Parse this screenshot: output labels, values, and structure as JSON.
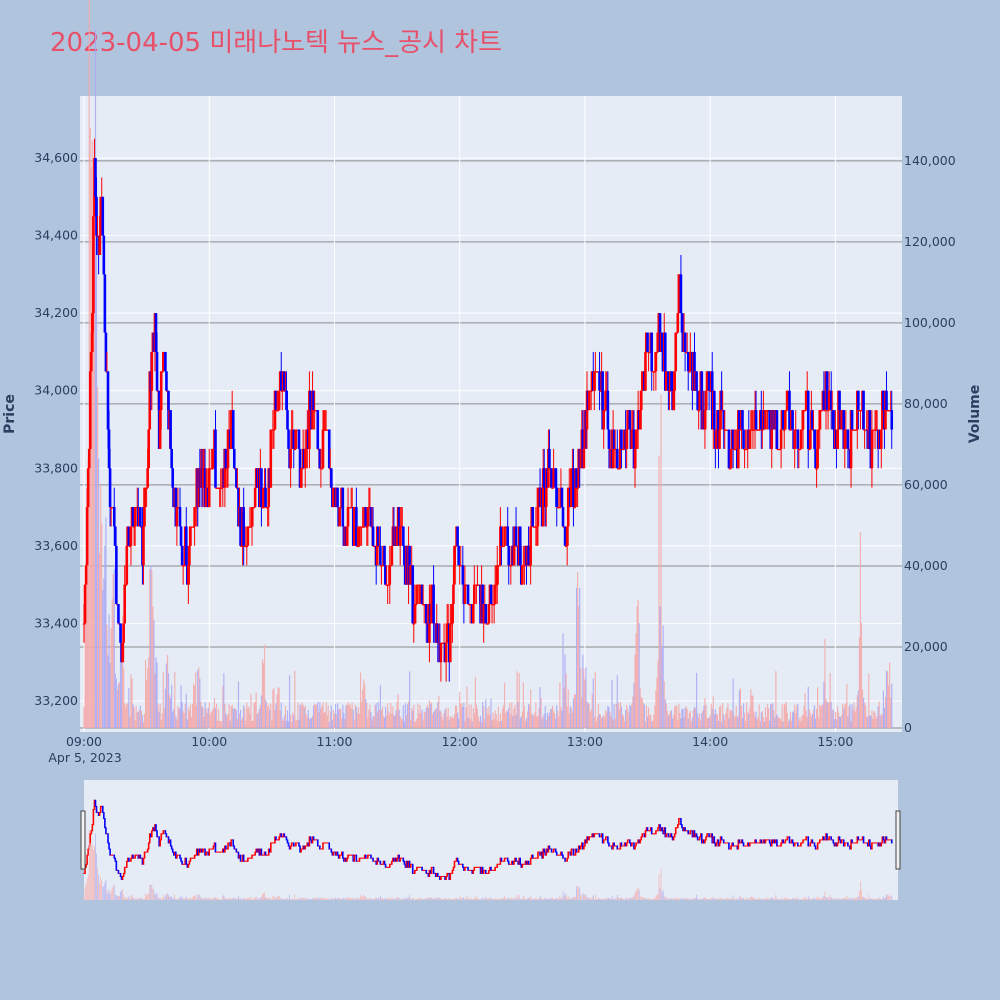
{
  "title": "2023-04-05 미래나노텍 뉴스_공시 차트",
  "colors": {
    "up": "#ff0000",
    "down": "#0000ff",
    "plot_bg": "#e5ecf6",
    "page_bg": "#b0c4de",
    "title": "#e8506a"
  },
  "chart_data": {
    "type": "candlestick",
    "title": "2023-04-05 미래나노텍 뉴스_공시 차트",
    "ylabel": "Price",
    "y2label": "Volume",
    "ylim": [
      33120,
      34760
    ],
    "y2lim": [
      0,
      156000
    ],
    "yticks": [
      "33,200",
      "33,400",
      "33,600",
      "33,800",
      "34,000",
      "34,200",
      "34,400",
      "34,600"
    ],
    "y2ticks": [
      "0",
      "20,000",
      "40,000",
      "60,000",
      "80,000",
      "100,000",
      "120,000",
      "140,000"
    ],
    "xticks": [
      "09:00",
      "10:00",
      "11:00",
      "12:00",
      "13:00",
      "14:00",
      "15:00"
    ],
    "xdate_label": "Apr 5, 2023",
    "xrange": [
      "09:00",
      "15:30"
    ],
    "grid": true,
    "legend": "none",
    "price_path": [
      [
        "09:00",
        33400
      ],
      [
        "09:02",
        33800
      ],
      [
        "09:04",
        34200
      ],
      [
        "09:05",
        34600
      ],
      [
        "09:07",
        34300
      ],
      [
        "09:08",
        34500
      ],
      [
        "09:10",
        34200
      ],
      [
        "09:12",
        33800
      ],
      [
        "09:14",
        33650
      ],
      [
        "09:16",
        33450
      ],
      [
        "09:18",
        33300
      ],
      [
        "09:20",
        33550
      ],
      [
        "09:23",
        33650
      ],
      [
        "09:26",
        33700
      ],
      [
        "09:28",
        33600
      ],
      [
        "09:30",
        33750
      ],
      [
        "09:32",
        34050
      ],
      [
        "09:34",
        34200
      ],
      [
        "09:36",
        33850
      ],
      [
        "09:38",
        34100
      ],
      [
        "09:40",
        34000
      ],
      [
        "09:42",
        33800
      ],
      [
        "09:44",
        33700
      ],
      [
        "09:47",
        33600
      ],
      [
        "09:50",
        33550
      ],
      [
        "09:53",
        33700
      ],
      [
        "09:56",
        33800
      ],
      [
        "09:59",
        33750
      ],
      [
        "10:02",
        33850
      ],
      [
        "10:05",
        33700
      ],
      [
        "10:08",
        33800
      ],
      [
        "10:11",
        33900
      ],
      [
        "10:14",
        33700
      ],
      [
        "10:17",
        33600
      ],
      [
        "10:20",
        33650
      ],
      [
        "10:23",
        33750
      ],
      [
        "10:26",
        33700
      ],
      [
        "10:29",
        33800
      ],
      [
        "10:32",
        33950
      ],
      [
        "10:35",
        34000
      ],
      [
        "10:38",
        33850
      ],
      [
        "10:41",
        33900
      ],
      [
        "10:44",
        33800
      ],
      [
        "10:47",
        33900
      ],
      [
        "10:50",
        34000
      ],
      [
        "10:53",
        33850
      ],
      [
        "10:56",
        33900
      ],
      [
        "10:59",
        33750
      ],
      [
        "11:02",
        33700
      ],
      [
        "11:05",
        33650
      ],
      [
        "11:08",
        33700
      ],
      [
        "11:11",
        33600
      ],
      [
        "11:14",
        33650
      ],
      [
        "11:17",
        33700
      ],
      [
        "11:20",
        33600
      ],
      [
        "11:23",
        33550
      ],
      [
        "11:26",
        33500
      ],
      [
        "11:29",
        33650
      ],
      [
        "11:32",
        33600
      ],
      [
        "11:35",
        33550
      ],
      [
        "11:38",
        33450
      ],
      [
        "11:41",
        33500
      ],
      [
        "11:44",
        33400
      ],
      [
        "11:47",
        33450
      ],
      [
        "11:50",
        33350
      ],
      [
        "11:53",
        33300
      ],
      [
        "11:56",
        33400
      ],
      [
        "11:58",
        33600
      ],
      [
        "12:00",
        33550
      ],
      [
        "12:03",
        33500
      ],
      [
        "12:06",
        33450
      ],
      [
        "12:09",
        33500
      ],
      [
        "12:12",
        33400
      ],
      [
        "12:15",
        33450
      ],
      [
        "12:18",
        33550
      ],
      [
        "12:21",
        33600
      ],
      [
        "12:24",
        33550
      ],
      [
        "12:27",
        33600
      ],
      [
        "12:30",
        33550
      ],
      [
        "12:33",
        33600
      ],
      [
        "12:36",
        33650
      ],
      [
        "12:39",
        33700
      ],
      [
        "12:42",
        33800
      ],
      [
        "12:45",
        33750
      ],
      [
        "12:48",
        33700
      ],
      [
        "12:51",
        33650
      ],
      [
        "12:54",
        33750
      ],
      [
        "12:57",
        33800
      ],
      [
        "13:00",
        33900
      ],
      [
        "13:03",
        34000
      ],
      [
        "13:06",
        34050
      ],
      [
        "13:09",
        33950
      ],
      [
        "13:12",
        33900
      ],
      [
        "13:15",
        33800
      ],
      [
        "13:18",
        33850
      ],
      [
        "13:21",
        33900
      ],
      [
        "13:24",
        33850
      ],
      [
        "13:27",
        34000
      ],
      [
        "13:30",
        34100
      ],
      [
        "13:33",
        34050
      ],
      [
        "13:36",
        34150
      ],
      [
        "13:39",
        34050
      ],
      [
        "13:42",
        34000
      ],
      [
        "13:45",
        34250
      ],
      [
        "13:48",
        34100
      ],
      [
        "13:51",
        34050
      ],
      [
        "13:54",
        34000
      ],
      [
        "13:57",
        33950
      ],
      [
        "14:00",
        34000
      ],
      [
        "14:03",
        33900
      ],
      [
        "14:06",
        33950
      ],
      [
        "14:09",
        33800
      ],
      [
        "14:12",
        33850
      ],
      [
        "14:15",
        33900
      ],
      [
        "14:18",
        33850
      ],
      [
        "14:21",
        33950
      ],
      [
        "14:24",
        33900
      ],
      [
        "14:27",
        33950
      ],
      [
        "14:30",
        33900
      ],
      [
        "14:33",
        33850
      ],
      [
        "14:36",
        33950
      ],
      [
        "14:39",
        33900
      ],
      [
        "14:42",
        33850
      ],
      [
        "14:45",
        33950
      ],
      [
        "14:48",
        33900
      ],
      [
        "14:51",
        33850
      ],
      [
        "14:54",
        34000
      ],
      [
        "14:57",
        33950
      ],
      [
        "15:00",
        33900
      ],
      [
        "15:03",
        33950
      ],
      [
        "15:06",
        33850
      ],
      [
        "15:09",
        33900
      ],
      [
        "15:12",
        33950
      ],
      [
        "15:15",
        33900
      ],
      [
        "15:18",
        33850
      ],
      [
        "15:21",
        33900
      ],
      [
        "15:24",
        33950
      ],
      [
        "15:27",
        33950
      ]
    ],
    "volume_peaks": [
      [
        "09:03",
        148000
      ],
      [
        "09:04",
        145000
      ],
      [
        "09:05",
        140000
      ],
      [
        "09:06",
        120000
      ],
      [
        "09:08",
        60000
      ],
      [
        "09:10",
        45000
      ],
      [
        "09:14",
        38000
      ],
      [
        "09:18",
        25000
      ],
      [
        "09:32",
        40000
      ],
      [
        "09:33",
        30000
      ],
      [
        "09:40",
        18000
      ],
      [
        "09:55",
        15000
      ],
      [
        "10:26",
        16000
      ],
      [
        "10:33",
        10000
      ],
      [
        "11:14",
        12000
      ],
      [
        "11:46",
        6000
      ],
      [
        "12:30",
        4000
      ],
      [
        "12:50",
        10000
      ],
      [
        "12:57",
        30000
      ],
      [
        "13:00",
        12000
      ],
      [
        "13:25",
        30000
      ],
      [
        "13:36",
        30000
      ],
      [
        "13:37",
        20000
      ],
      [
        "14:20",
        8000
      ],
      [
        "14:55",
        10000
      ],
      [
        "15:12",
        22000
      ],
      [
        "15:25",
        14000
      ],
      [
        "15:29",
        46000
      ]
    ]
  }
}
